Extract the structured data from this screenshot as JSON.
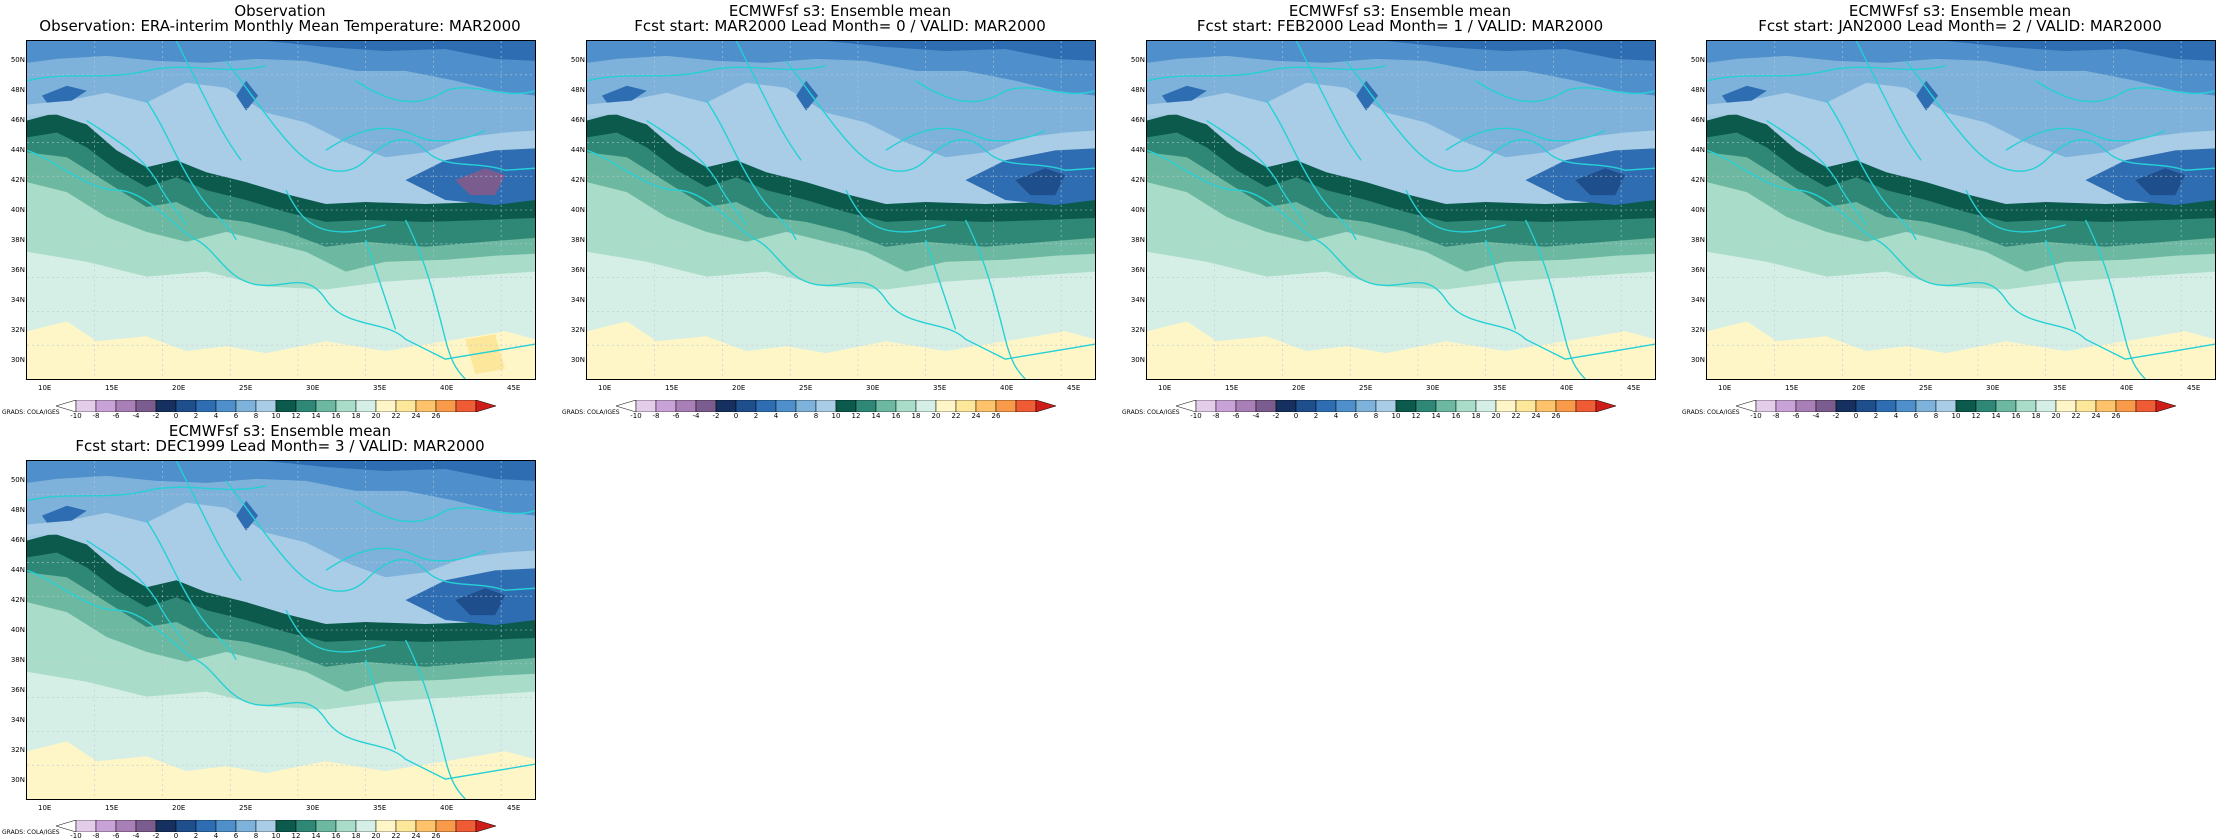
{
  "panels": [
    {
      "title1": "Observation",
      "title2": "Observation: ERA-interim Monthly Mean Temperature: MAR2000",
      "variant": "obs"
    },
    {
      "title1": "ECMWFsf s3: Ensemble mean",
      "title2": "Fcst start: MAR2000   Lead Month= 0 / VALID: MAR2000",
      "variant": "fc"
    },
    {
      "title1": "ECMWFsf s3: Ensemble mean",
      "title2": "Fcst start: FEB2000   Lead Month= 1 / VALID: MAR2000",
      "variant": "fc"
    },
    {
      "title1": "ECMWFsf s3: Ensemble mean",
      "title2": "Fcst start: JAN2000   Lead Month= 2 / VALID: MAR2000",
      "variant": "fc"
    },
    {
      "title1": "ECMWFsf s3: Ensemble mean",
      "title2": "Fcst start: DEC1999   Lead Month= 3 / VALID: MAR2000",
      "variant": "fc"
    }
  ],
  "lat_labels": [
    "50N",
    "48N",
    "46N",
    "44N",
    "42N",
    "40N",
    "38N",
    "36N",
    "34N",
    "32N",
    "30N"
  ],
  "lon_labels": [
    "10E",
    "15E",
    "20E",
    "25E",
    "30E",
    "35E",
    "40E",
    "45E"
  ],
  "colorbar": {
    "labels": [
      "-10",
      "-8",
      "-6",
      "-4",
      "-2",
      "0",
      "2",
      "4",
      "6",
      "8",
      "10",
      "12",
      "14",
      "16",
      "18",
      "20",
      "22",
      "24",
      "26"
    ],
    "colors": [
      "#ffffff",
      "#e3cdea",
      "#c9a3d8",
      "#a97fb8",
      "#7a5d8e",
      "#16305f",
      "#1f4e8d",
      "#2f6db3",
      "#4f8fcb",
      "#7eb2da",
      "#a9cde6",
      "#0b5a4c",
      "#2f8775",
      "#6cb8a1",
      "#a9dcc9",
      "#d6efe6",
      "#fff6c7",
      "#fde79a",
      "#fdc26a",
      "#f99a4a",
      "#ef5b35",
      "#cf1e1a"
    ],
    "credit": "GRADS: COLA/IGES"
  }
}
